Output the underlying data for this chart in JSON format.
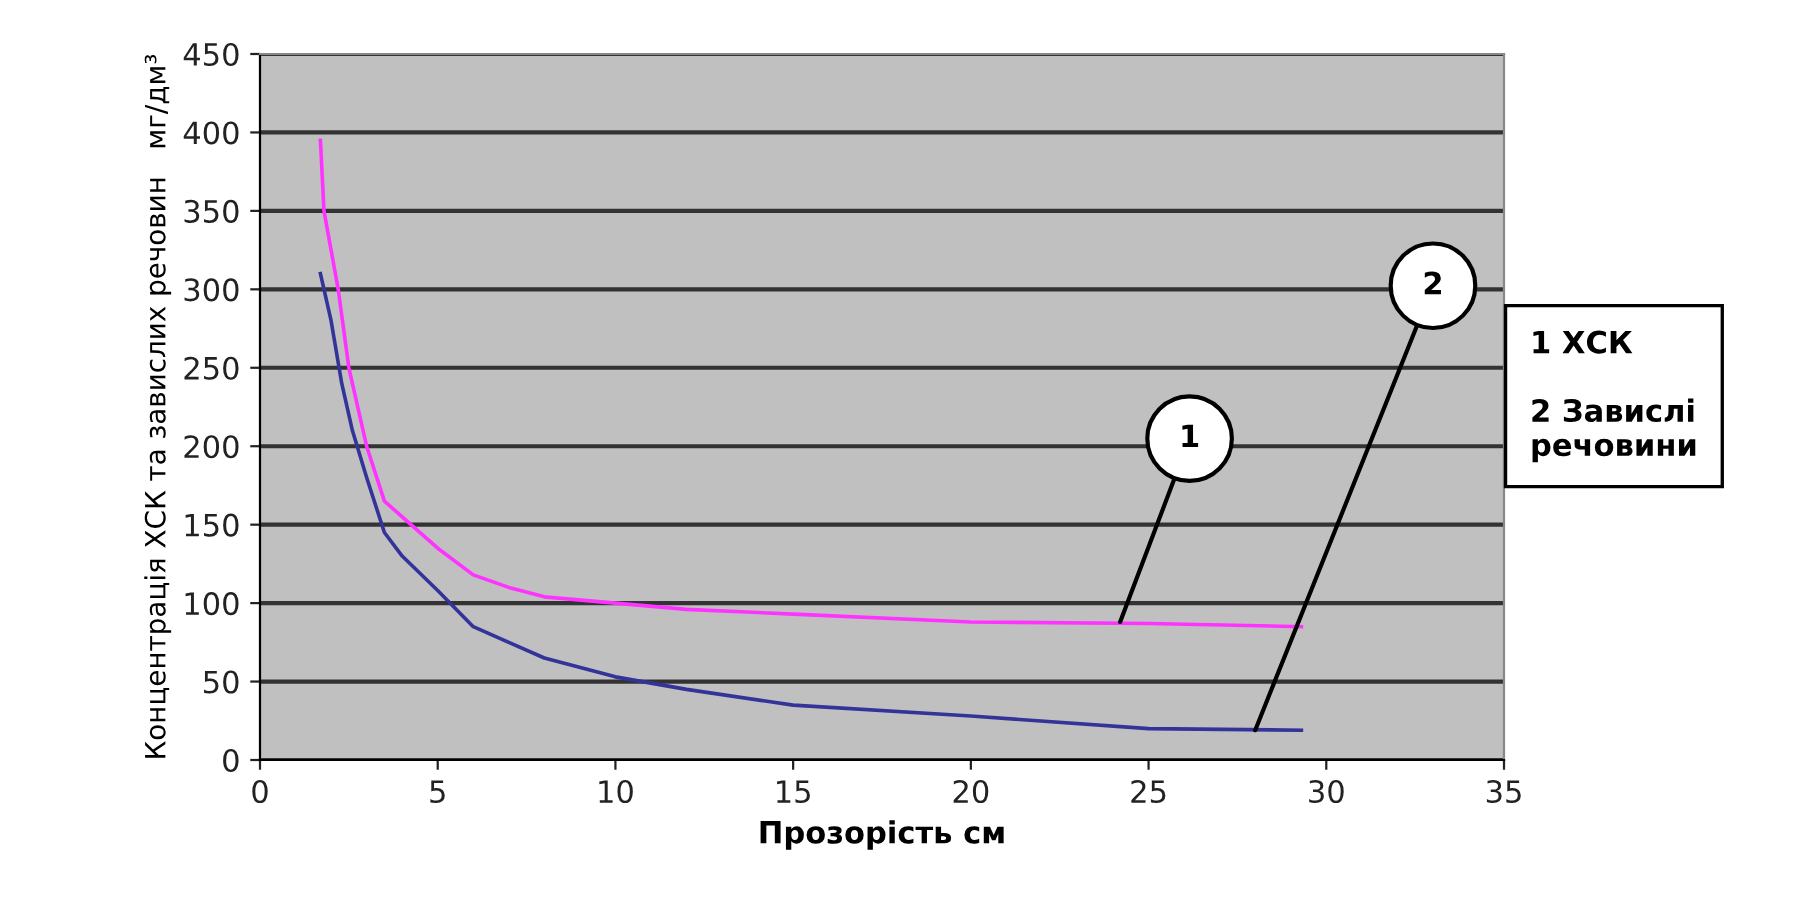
{
  "chart_data": {
    "type": "line",
    "xlabel": "Прозорість см",
    "ylabel": "Концентрація ХСК та завислих речовин   мг/дм³",
    "xlim": [
      0,
      35
    ],
    "xticks": [
      0,
      5,
      10,
      15,
      20,
      25,
      30,
      35
    ],
    "ylim": [
      0,
      450
    ],
    "yticks": [
      0,
      50,
      100,
      150,
      200,
      250,
      300,
      350,
      400,
      450
    ],
    "grid": "y",
    "marker": "none",
    "line_style": "solid",
    "series": [
      {
        "color": "#ff33ff",
        "x": [
          1.7,
          1.8,
          2.2,
          2.5,
          3,
          3.5,
          4,
          5,
          6,
          7,
          8,
          10,
          12,
          15,
          20,
          25,
          29.3
        ],
        "values": [
          395,
          350,
          300,
          250,
          200,
          165,
          155,
          135,
          118,
          110,
          104,
          100,
          96,
          93,
          88,
          87,
          85
        ]
      },
      {
        "color": "#333399",
        "x": [
          1.7,
          2,
          2.3,
          2.6,
          3,
          3.5,
          4,
          5,
          6,
          7,
          8,
          10,
          12,
          15,
          20,
          25,
          29.3
        ],
        "values": [
          310,
          280,
          240,
          210,
          180,
          145,
          130,
          108,
          85,
          75,
          65,
          53,
          45,
          35,
          28,
          20,
          19
        ]
      }
    ],
    "annotations": [
      {
        "text": "1",
        "x": 24.2,
        "y": 88
      },
      {
        "text": "2",
        "x": 28,
        "y": 19
      },
      "1 ХСК\n\n2 Завислі\nречовини"
    ]
  }
}
